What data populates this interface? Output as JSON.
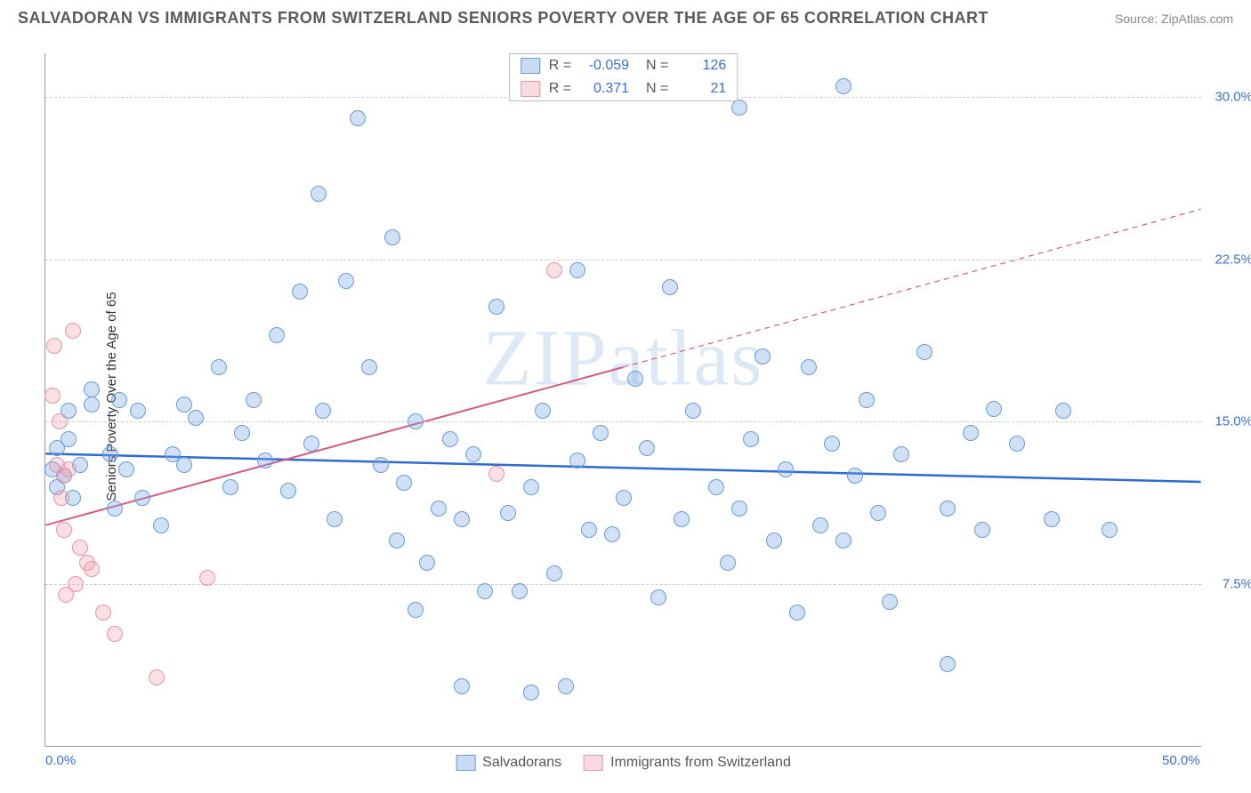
{
  "header": {
    "title": "SALVADORAN VS IMMIGRANTS FROM SWITZERLAND SENIORS POVERTY OVER THE AGE OF 65 CORRELATION CHART",
    "source": "Source: ZipAtlas.com"
  },
  "chart": {
    "type": "scatter",
    "y_axis_label": "Seniors Poverty Over the Age of 65",
    "xlim": [
      0,
      50
    ],
    "ylim": [
      0,
      32
    ],
    "x_ticks": [
      {
        "v": 0,
        "label": "0.0%"
      },
      {
        "v": 50,
        "label": "50.0%"
      }
    ],
    "y_ticks": [
      {
        "v": 7.5,
        "label": "7.5%"
      },
      {
        "v": 15,
        "label": "15.0%"
      },
      {
        "v": 22.5,
        "label": "22.5%"
      },
      {
        "v": 30,
        "label": "30.0%"
      }
    ],
    "grid_color": "#cccccc",
    "background_color": "#ffffff",
    "marker_radius": 9,
    "watermark": "ZIPatlas",
    "series": [
      {
        "name": "Salvadorans",
        "color_fill": "rgba(120,165,225,0.35)",
        "color_stroke": "#6a9bd8",
        "R": "-0.059",
        "N": "126",
        "trend": {
          "x1": 0,
          "y1": 13.5,
          "x2": 50,
          "y2": 12.2,
          "dash_from_x": 50,
          "color": "#2d6bd4",
          "width": 2.5
        },
        "points": [
          [
            0.5,
            13.8
          ],
          [
            0.8,
            12.5
          ],
          [
            1,
            14.2
          ],
          [
            1.2,
            11.5
          ],
          [
            1.5,
            13
          ],
          [
            1,
            15.5
          ],
          [
            0.5,
            12
          ],
          [
            0.3,
            12.8
          ],
          [
            2,
            15.8
          ],
          [
            2,
            16.5
          ],
          [
            3.2,
            16
          ],
          [
            4,
            15.5
          ],
          [
            2.8,
            13.5
          ],
          [
            3.5,
            12.8
          ],
          [
            3,
            11
          ],
          [
            4.2,
            11.5
          ],
          [
            5,
            10.2
          ],
          [
            5.5,
            13.5
          ],
          [
            6,
            15.8
          ],
          [
            6.5,
            15.2
          ],
          [
            6,
            13
          ],
          [
            7.5,
            17.5
          ],
          [
            8,
            12
          ],
          [
            8.5,
            14.5
          ],
          [
            9,
            16
          ],
          [
            9.5,
            13.2
          ],
          [
            10,
            19
          ],
          [
            10.5,
            11.8
          ],
          [
            11,
            21
          ],
          [
            11.5,
            14
          ],
          [
            11.8,
            25.5
          ],
          [
            12,
            15.5
          ],
          [
            12.5,
            10.5
          ],
          [
            13,
            21.5
          ],
          [
            13.5,
            29
          ],
          [
            14,
            17.5
          ],
          [
            14.5,
            13
          ],
          [
            15,
            23.5
          ],
          [
            15.2,
            9.5
          ],
          [
            15.5,
            12.2
          ],
          [
            16,
            15
          ],
          [
            16.5,
            8.5
          ],
          [
            17,
            11
          ],
          [
            17.5,
            14.2
          ],
          [
            18,
            10.5
          ],
          [
            18.5,
            13.5
          ],
          [
            19,
            7.2
          ],
          [
            19.5,
            20.3
          ],
          [
            16,
            6.3
          ],
          [
            20,
            10.8
          ],
          [
            20.5,
            7.2
          ],
          [
            21,
            12
          ],
          [
            21.5,
            15.5
          ],
          [
            22,
            8
          ],
          [
            22.5,
            2.8
          ],
          [
            23,
            13.2
          ],
          [
            23.5,
            10
          ],
          [
            24,
            14.5
          ],
          [
            24.5,
            9.8
          ],
          [
            21,
            2.5
          ],
          [
            18,
            2.8
          ],
          [
            25,
            11.5
          ],
          [
            25.5,
            17
          ],
          [
            26,
            13.8
          ],
          [
            26.5,
            6.9
          ],
          [
            27,
            21.2
          ],
          [
            27.5,
            10.5
          ],
          [
            23,
            22
          ],
          [
            28,
            15.5
          ],
          [
            29,
            12
          ],
          [
            29.5,
            8.5
          ],
          [
            30,
            11
          ],
          [
            30.5,
            14.2
          ],
          [
            31,
            18
          ],
          [
            31.5,
            9.5
          ],
          [
            32,
            12.8
          ],
          [
            32.5,
            6.2
          ],
          [
            33,
            17.5
          ],
          [
            33.5,
            10.2
          ],
          [
            34,
            14
          ],
          [
            34.5,
            9.5
          ],
          [
            30,
            29.5
          ],
          [
            35,
            12.5
          ],
          [
            35.5,
            16
          ],
          [
            36,
            10.8
          ],
          [
            36.5,
            6.7
          ],
          [
            37,
            13.5
          ],
          [
            38,
            18.2
          ],
          [
            39,
            11
          ],
          [
            40,
            14.5
          ],
          [
            40.5,
            10
          ],
          [
            41,
            15.6
          ],
          [
            43.5,
            10.5
          ],
          [
            34.5,
            30.5
          ],
          [
            39,
            3.8
          ],
          [
            42,
            14
          ],
          [
            44,
            15.5
          ],
          [
            46,
            10
          ]
        ]
      },
      {
        "name": "Immigrants from Switzerland",
        "color_fill": "rgba(240,150,170,0.3)",
        "color_stroke": "#e098ab",
        "R": "0.371",
        "N": "21",
        "trend": {
          "x1": 0,
          "y1": 10.2,
          "x2": 25,
          "y2": 17.5,
          "dash_from_x": 25,
          "dash_to": {
            "x": 50,
            "y": 24.8
          },
          "color": "#d45b82",
          "width": 2
        },
        "points": [
          [
            0.3,
            16.2
          ],
          [
            0.6,
            15
          ],
          [
            0.8,
            12.5
          ],
          [
            0.5,
            13
          ],
          [
            0.7,
            11.5
          ],
          [
            1,
            12.8
          ],
          [
            0.4,
            18.5
          ],
          [
            1.2,
            19.2
          ],
          [
            0.8,
            10
          ],
          [
            1.5,
            9.2
          ],
          [
            1.8,
            8.5
          ],
          [
            0.9,
            7
          ],
          [
            2,
            8.2
          ],
          [
            1.3,
            7.5
          ],
          [
            2.5,
            6.2
          ],
          [
            3,
            5.2
          ],
          [
            4.8,
            3.2
          ],
          [
            7,
            7.8
          ],
          [
            19.5,
            12.6
          ],
          [
            22,
            22
          ]
        ]
      }
    ],
    "legend_bottom": [
      {
        "swatch": "blue",
        "label": "Salvadorans"
      },
      {
        "swatch": "pink",
        "label": "Immigrants from Switzerland"
      }
    ]
  }
}
